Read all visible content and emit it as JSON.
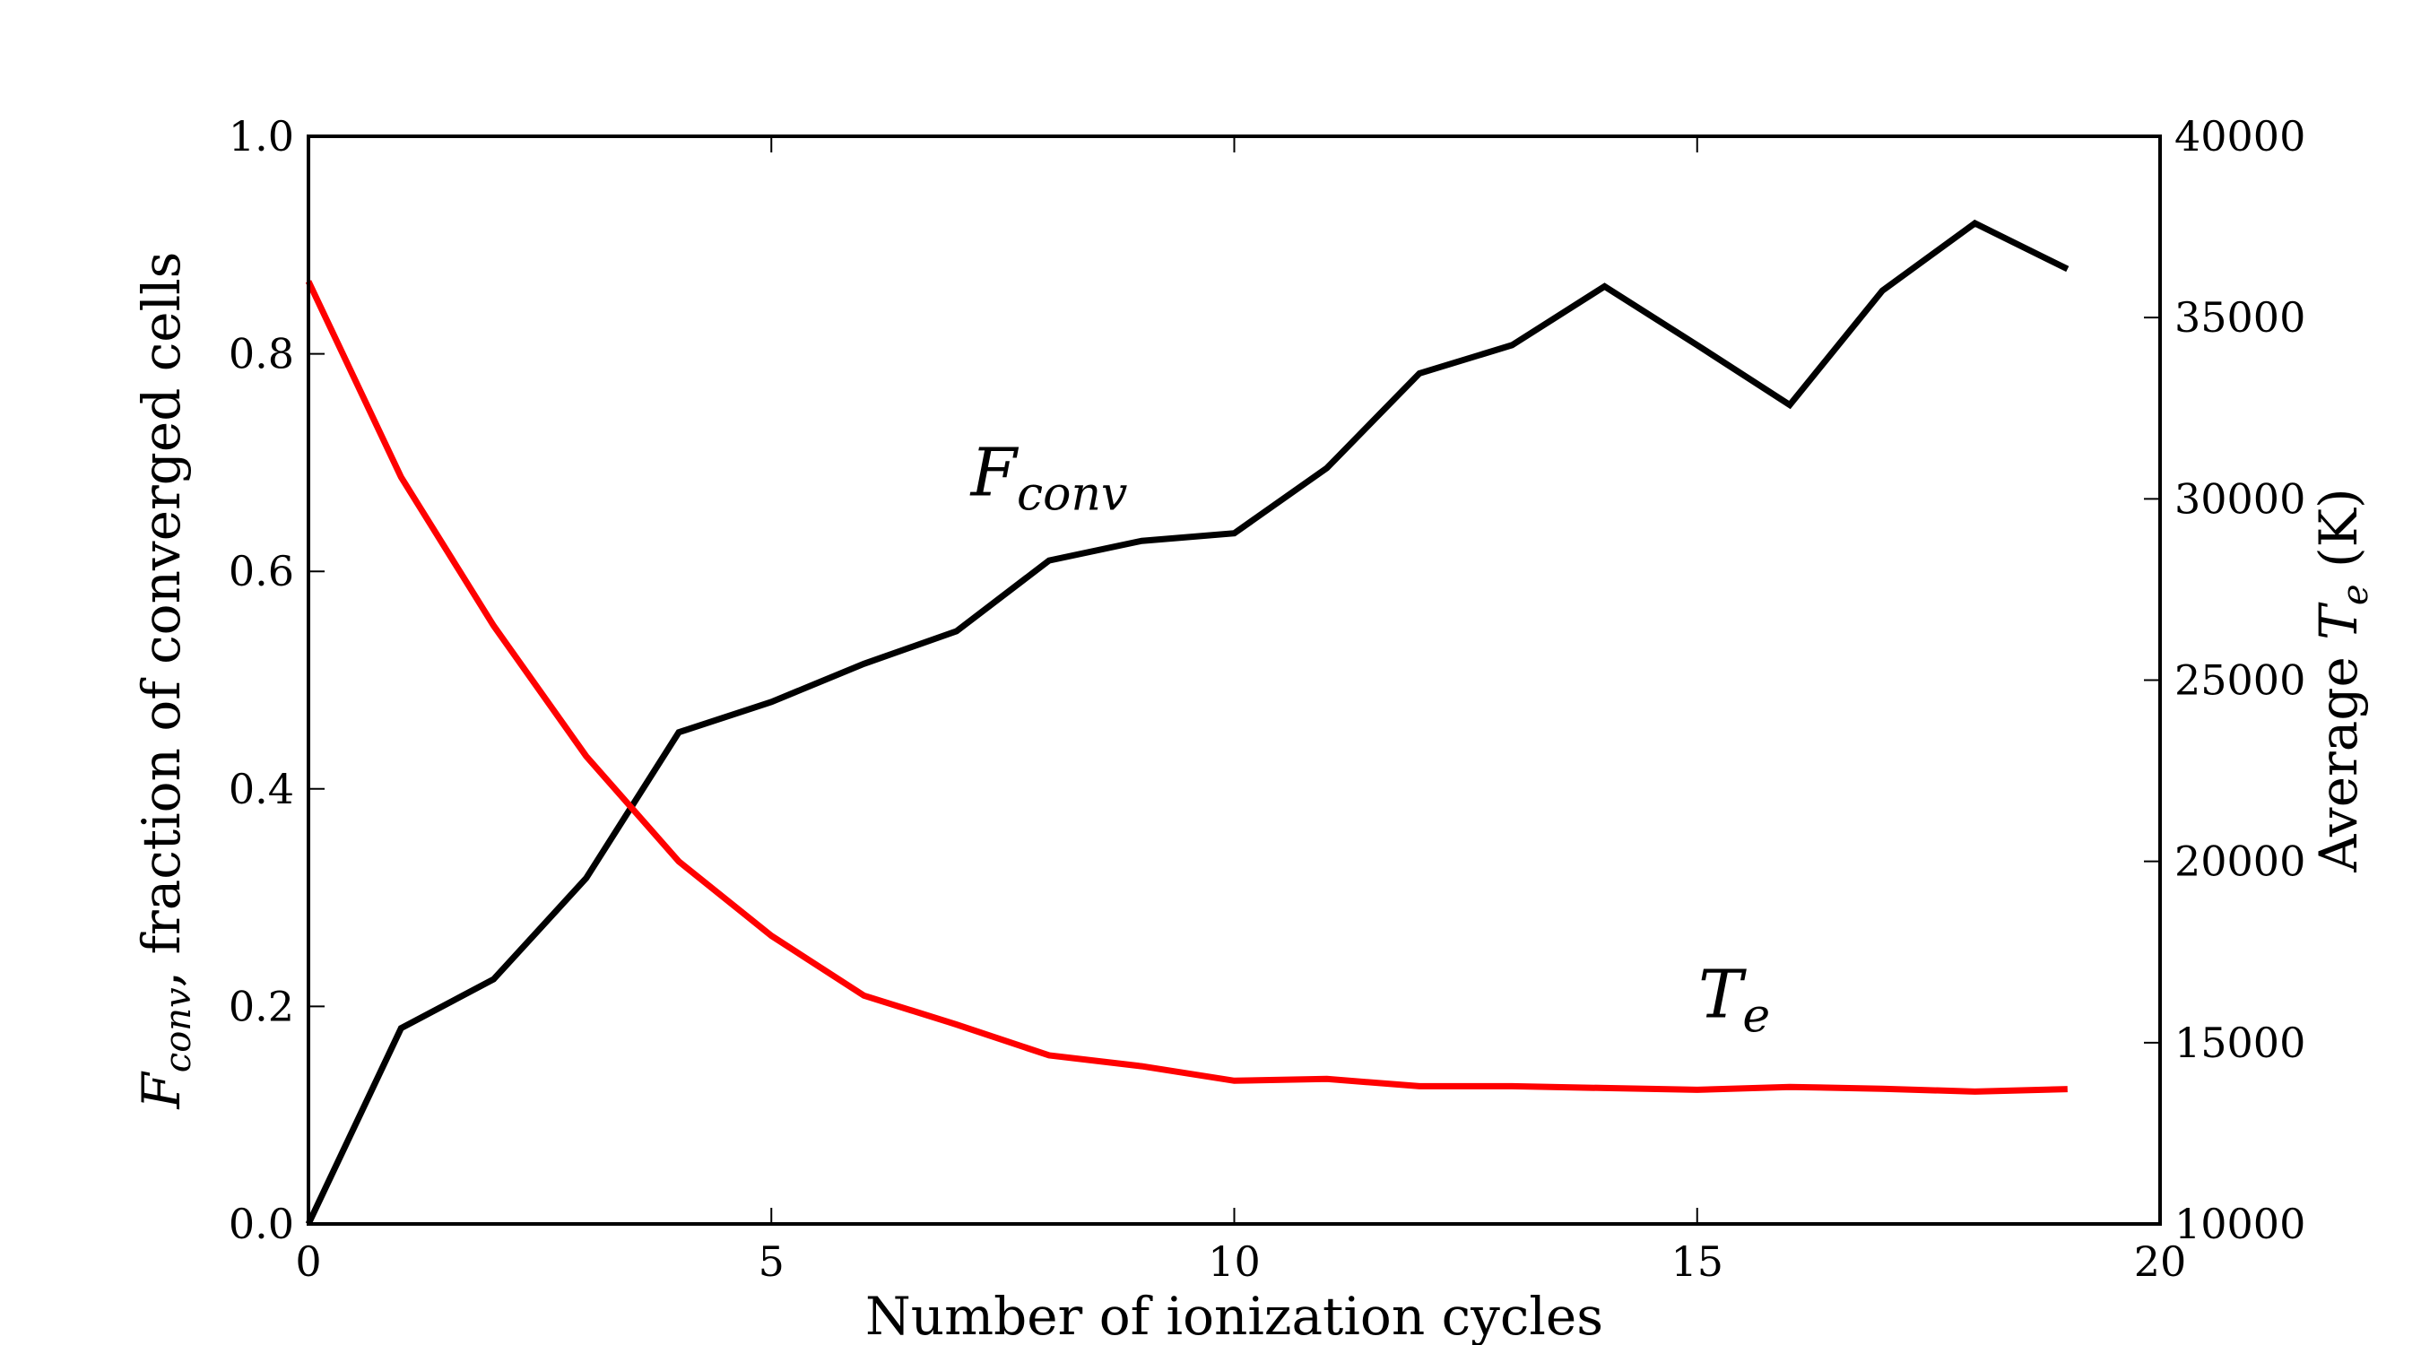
{
  "chart_data": {
    "type": "line",
    "xlabel": "Number of ionization cycles",
    "ylabel_left": "F_conv, fraction of converged cells",
    "ylabel_right": "Average T_e (K)",
    "xlim": [
      0,
      20
    ],
    "ylim_left": [
      0.0,
      1.0
    ],
    "ylim_right": [
      10000,
      40000
    ],
    "xticks": [
      0,
      5,
      10,
      15,
      20
    ],
    "yticks_left": [
      0.0,
      0.2,
      0.4,
      0.6,
      0.8,
      1.0
    ],
    "yticks_right": [
      10000,
      15000,
      20000,
      25000,
      30000,
      35000,
      40000
    ],
    "grid": false,
    "series": [
      {
        "name": "F_conv",
        "axis": "left",
        "color": "#000000",
        "x": [
          0,
          1,
          2,
          3,
          4,
          5,
          6,
          7,
          8,
          9,
          10,
          11,
          12,
          13,
          14,
          15,
          16,
          17,
          18,
          19
        ],
        "values": [
          0.0,
          0.18,
          0.225,
          0.318,
          0.452,
          0.48,
          0.515,
          0.545,
          0.61,
          0.628,
          0.635,
          0.695,
          0.782,
          0.808,
          0.862,
          0.808,
          0.753,
          0.858,
          0.92,
          0.878
        ]
      },
      {
        "name": "T_e",
        "axis": "right",
        "color": "#ff0000",
        "x": [
          0,
          1,
          2,
          3,
          4,
          5,
          6,
          7,
          8,
          9,
          10,
          11,
          12,
          13,
          14,
          15,
          16,
          17,
          18,
          19
        ],
        "values": [
          36000,
          30600,
          26500,
          22900,
          20000,
          17950,
          16300,
          15500,
          14650,
          14350,
          13950,
          14000,
          13800,
          13800,
          13750,
          13700,
          13780,
          13730,
          13650,
          13720
        ]
      }
    ],
    "annotations": [
      {
        "text_main": "F",
        "text_sub": "conv",
        "x": 8.0,
        "y": 0.67
      },
      {
        "text_main": "T",
        "text_sub": "e",
        "x": 15.4,
        "y": 0.19
      }
    ]
  }
}
